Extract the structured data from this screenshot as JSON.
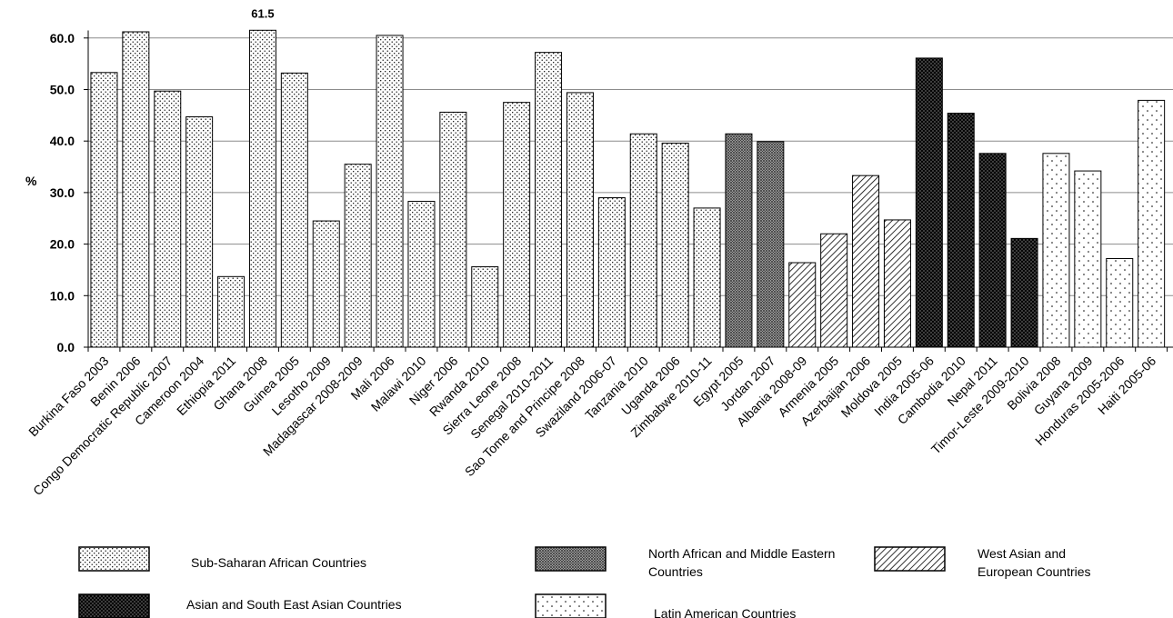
{
  "chart_data": {
    "type": "bar",
    "ylabel": "%",
    "ylim": [
      0,
      65
    ],
    "yticks": [
      "0.0",
      "10.0",
      "20.0",
      "30.0",
      "40.0",
      "50.0",
      "60.0"
    ],
    "grid": true,
    "legend_placement": "bottom",
    "categories": [
      "Burkina Faso 2003",
      "Benin 2006",
      "Congo Democratic Republic 2007",
      "Cameroon 2004",
      "Ethiopia 2011",
      "Ghana 2008",
      "Guinea 2005",
      "Lesotho 2009",
      "Madagascar 2008-2009",
      "Mali 2006",
      "Malawi 2010",
      "Niger 2006",
      "Rwanda 2010",
      "Sierra Leone 2008",
      "Senegal  2010-2011",
      "Sao Tome and Principe 2008",
      "Swaziland 2006-07",
      "Tanzania 2010",
      "Uganda 2006",
      "Zimbabwe 2010-11",
      "Egypt 2005",
      "Jordan 2007",
      "Albania 2008-09",
      "Armenia 2005",
      "Azerbaijan 2006",
      "Moldova 2005",
      "India 2005-06",
      "Cambodia 2010",
      "Nepal 2011",
      "Timor-Leste 2009-2010",
      "Bolivia 2008",
      "Guyana 2009",
      "Honduras 2005-2006",
      "Haiti 2005-06"
    ],
    "values": [
      53.3,
      61.2,
      49.7,
      44.7,
      13.7,
      61.5,
      53.2,
      24.5,
      35.5,
      60.5,
      28.3,
      45.6,
      15.6,
      47.5,
      57.2,
      49.4,
      29.0,
      41.4,
      39.6,
      27.0,
      41.4,
      39.9,
      16.4,
      22.0,
      33.3,
      24.7,
      56.1,
      45.4,
      37.6,
      21.1,
      37.6,
      34.2,
      17.2,
      47.9
    ],
    "groups": [
      0,
      0,
      0,
      0,
      0,
      0,
      0,
      0,
      0,
      0,
      0,
      0,
      0,
      0,
      0,
      0,
      0,
      0,
      0,
      0,
      1,
      1,
      2,
      2,
      2,
      2,
      3,
      3,
      3,
      3,
      4,
      4,
      4,
      4
    ],
    "annotations": [
      {
        "category": "Ghana 2008",
        "text": "61.5"
      }
    ],
    "legend": [
      {
        "label": "Sub-Saharan African Countries",
        "pattern": "fine-dots"
      },
      {
        "label": "North African and Middle Eastern Countries",
        "pattern": "crosshatch"
      },
      {
        "label": "West Asian and European Countries",
        "pattern": "diagonal"
      },
      {
        "label": "Asian and South East Asian Countries",
        "pattern": "dense-crosshatch"
      },
      {
        "label": "Latin American Countries",
        "pattern": "sparse-dots"
      }
    ],
    "colors": {
      "bar_stroke": "#000000",
      "grid": "#8c8c8c",
      "axis": "#000000",
      "background": "#ffffff"
    }
  }
}
